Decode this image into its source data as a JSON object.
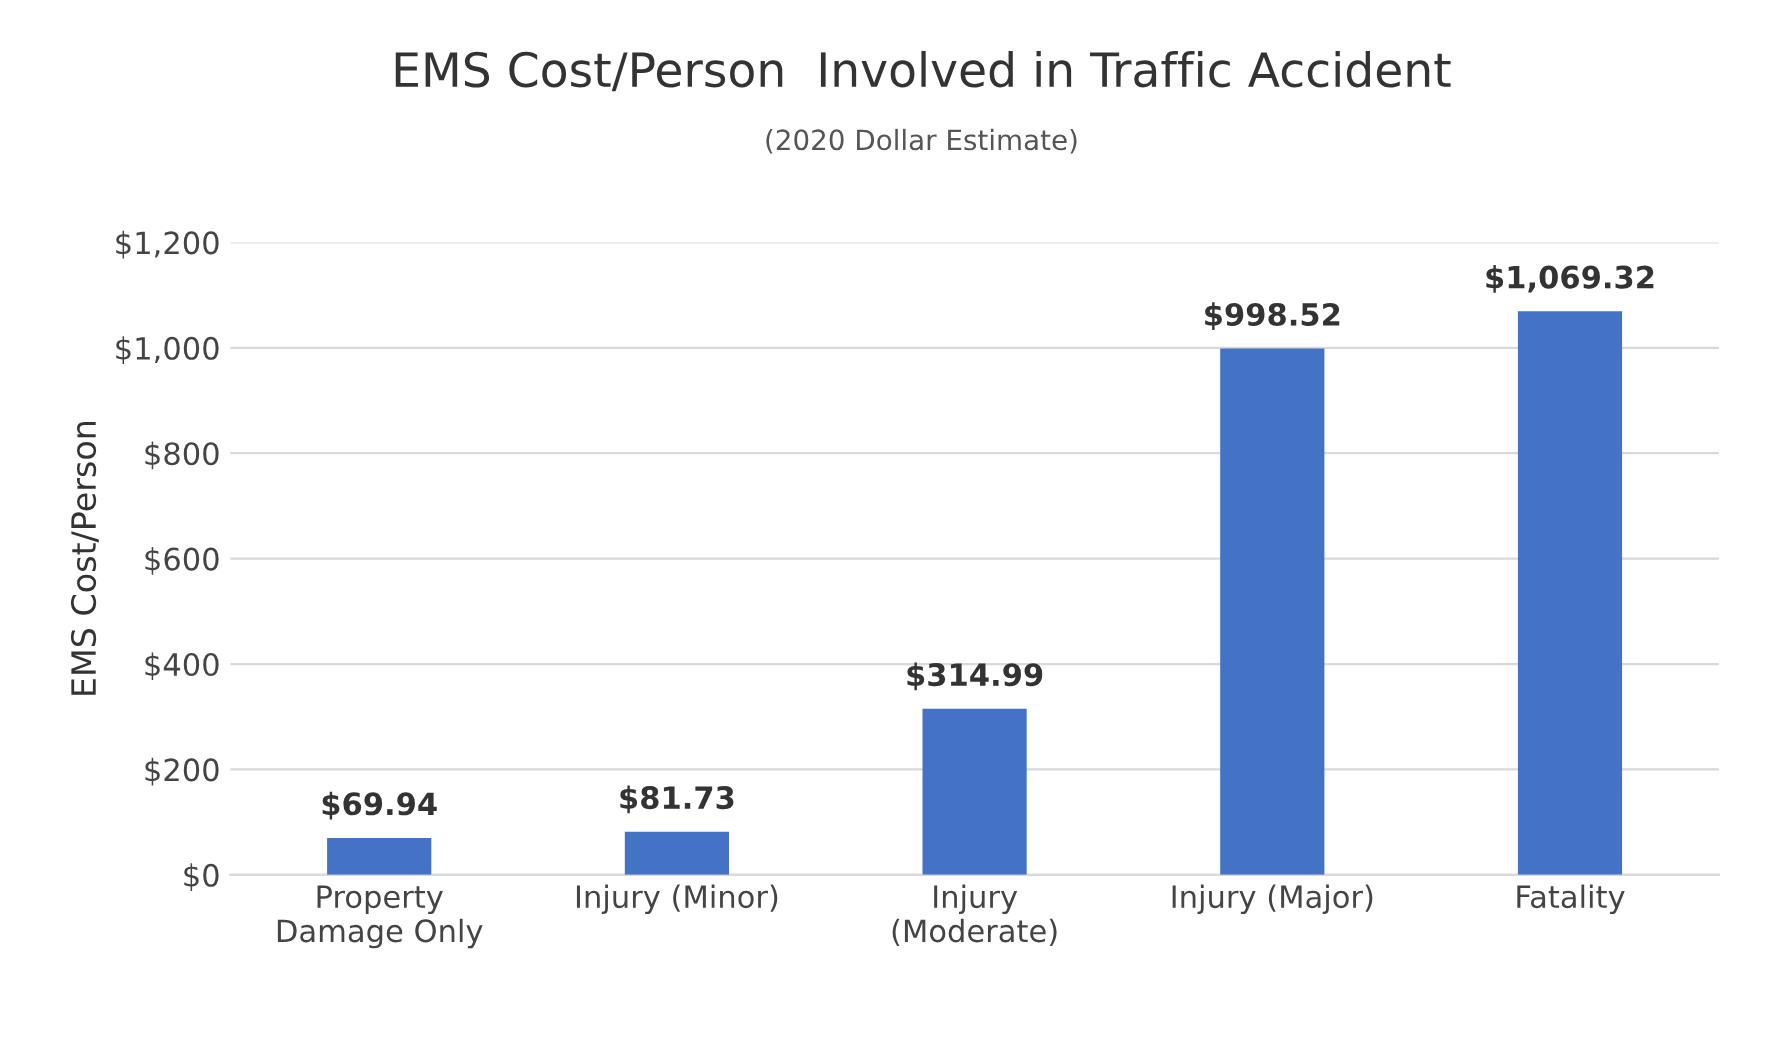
{
  "chart_data": {
    "type": "bar",
    "title": "EMS Cost/Person  Involved in Traffic Accident",
    "subtitle": "(2020 Dollar Estimate)",
    "ylabel": "EMS Cost/Person",
    "categories": [
      "Property\nDamage Only",
      "Injury (Minor)",
      "Injury\n(Moderate)",
      "Injury (Major)",
      "Fatality"
    ],
    "values": [
      69.94,
      81.73,
      314.99,
      998.52,
      1069.32
    ],
    "value_labels": [
      "$69.94",
      "$81.73",
      "$314.99",
      "$998.52",
      "$1,069.32"
    ],
    "color": "#4472c4",
    "ylim": [
      0,
      1200
    ],
    "yticks": [
      {
        "value": 0,
        "label": "$0"
      },
      {
        "value": 200,
        "label": "$200"
      },
      {
        "value": 400,
        "label": "$400"
      },
      {
        "value": 600,
        "label": "$600"
      },
      {
        "value": 800,
        "label": "$800"
      },
      {
        "value": 1000,
        "label": "$1,000"
      },
      {
        "value": 1200,
        "label": "$1,200"
      }
    ],
    "grid": "y",
    "legend": false
  }
}
